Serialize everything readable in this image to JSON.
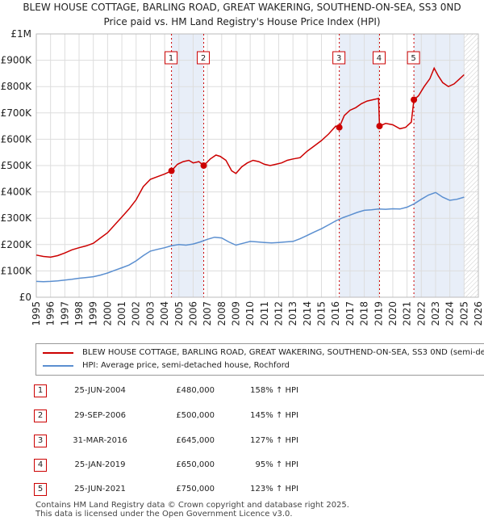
{
  "title_line1": "BLEW HOUSE COTTAGE, BARLING ROAD, GREAT WAKERING, SOUTHEND-ON-SEA, SS3 0ND",
  "title_line2": "Price paid vs. HM Land Registry's House Price Index (HPI)",
  "colors": {
    "red": "#cc0000",
    "blue": "#5b8fd0",
    "shade": "#e8eef8",
    "grid": "#dddddd"
  },
  "chart_data": {
    "type": "line",
    "xlim": [
      1995,
      2026
    ],
    "ylim": [
      0,
      1000000
    ],
    "y_ticks": [
      {
        "value": 0,
        "label": "£0"
      },
      {
        "value": 100000,
        "label": "£100K"
      },
      {
        "value": 200000,
        "label": "£200K"
      },
      {
        "value": 300000,
        "label": "£300K"
      },
      {
        "value": 400000,
        "label": "£400K"
      },
      {
        "value": 500000,
        "label": "£500K"
      },
      {
        "value": 600000,
        "label": "£600K"
      },
      {
        "value": 700000,
        "label": "£700K"
      },
      {
        "value": 800000,
        "label": "£800K"
      },
      {
        "value": 900000,
        "label": "£900K"
      },
      {
        "value": 1000000,
        "label": "£1M"
      }
    ],
    "x_ticks": [
      "1995",
      "1996",
      "1997",
      "1998",
      "1999",
      "2000",
      "2001",
      "2002",
      "2003",
      "2004",
      "2005",
      "2006",
      "2007",
      "2008",
      "2009",
      "2010",
      "2011",
      "2012",
      "2013",
      "2014",
      "2015",
      "2016",
      "2017",
      "2018",
      "2019",
      "2020",
      "2021",
      "2022",
      "2023",
      "2024",
      "2025",
      "2026"
    ],
    "shaded_ranges": [
      [
        2004.48,
        2006.74
      ],
      [
        2016.25,
        2019.07
      ],
      [
        2021.48,
        2025.0
      ]
    ],
    "series": [
      {
        "name": "BLEW HOUSE COTTAGE, BARLING ROAD, GREAT WAKERING, SOUTHEND-ON-SEA, SS3 0ND (semi-detached house)",
        "color": "red",
        "x": [
          1995.0,
          1995.5,
          1996.0,
          1996.5,
          1997.0,
          1997.5,
          1998.0,
          1998.5,
          1999.0,
          1999.5,
          2000.0,
          2000.5,
          2001.0,
          2001.5,
          2002.0,
          2002.5,
          2003.0,
          2003.5,
          2004.0,
          2004.48,
          2004.9,
          2005.3,
          2005.7,
          2006.0,
          2006.4,
          2006.74,
          2007.2,
          2007.6,
          2007.9,
          2008.3,
          2008.7,
          2009.0,
          2009.4,
          2009.8,
          2010.2,
          2010.6,
          2011.0,
          2011.4,
          2011.8,
          2012.2,
          2012.6,
          2013.0,
          2013.5,
          2014.0,
          2014.5,
          2015.0,
          2015.5,
          2016.0,
          2016.25,
          2016.6,
          2017.0,
          2017.4,
          2017.8,
          2018.2,
          2018.6,
          2019.0,
          2019.07,
          2019.5,
          2020.0,
          2020.5,
          2020.9,
          2021.3,
          2021.48,
          2021.8,
          2022.2,
          2022.6,
          2022.9,
          2023.2,
          2023.5,
          2023.9,
          2024.3,
          2024.7,
          2025.0
        ],
        "y": [
          160000,
          155000,
          152000,
          158000,
          168000,
          180000,
          188000,
          195000,
          205000,
          225000,
          245000,
          275000,
          305000,
          335000,
          370000,
          420000,
          448000,
          458000,
          468000,
          480000,
          505000,
          515000,
          520000,
          510000,
          515000,
          500000,
          525000,
          540000,
          535000,
          520000,
          480000,
          470000,
          495000,
          510000,
          520000,
          515000,
          505000,
          500000,
          505000,
          510000,
          520000,
          525000,
          530000,
          555000,
          575000,
          595000,
          620000,
          650000,
          645000,
          690000,
          710000,
          720000,
          735000,
          745000,
          750000,
          755000,
          650000,
          660000,
          655000,
          640000,
          645000,
          665000,
          750000,
          765000,
          800000,
          830000,
          870000,
          840000,
          815000,
          800000,
          810000,
          830000,
          845000
        ]
      },
      {
        "name": "HPI: Average price, semi-detached house, Rochford",
        "color": "blue",
        "x": [
          1995.0,
          1995.5,
          1996.0,
          1996.5,
          1997.0,
          1997.5,
          1998.0,
          1998.5,
          1999.0,
          1999.5,
          2000.0,
          2000.5,
          2001.0,
          2001.5,
          2002.0,
          2002.5,
          2003.0,
          2003.5,
          2004.0,
          2004.5,
          2005.0,
          2005.5,
          2006.0,
          2006.5,
          2007.0,
          2007.5,
          2008.0,
          2008.5,
          2009.0,
          2009.5,
          2010.0,
          2010.5,
          2011.0,
          2011.5,
          2012.0,
          2012.5,
          2013.0,
          2013.5,
          2014.0,
          2014.5,
          2015.0,
          2015.5,
          2016.0,
          2016.5,
          2017.0,
          2017.5,
          2018.0,
          2018.5,
          2019.0,
          2019.5,
          2020.0,
          2020.5,
          2021.0,
          2021.5,
          2022.0,
          2022.5,
          2023.0,
          2023.5,
          2024.0,
          2024.5,
          2025.0
        ],
        "y": [
          60000,
          59000,
          60000,
          62000,
          65000,
          68000,
          72000,
          75000,
          78000,
          84000,
          92000,
          102000,
          112000,
          122000,
          138000,
          158000,
          175000,
          182000,
          188000,
          196000,
          200000,
          198000,
          202000,
          210000,
          220000,
          228000,
          225000,
          210000,
          198000,
          205000,
          212000,
          210000,
          208000,
          206000,
          208000,
          210000,
          212000,
          222000,
          235000,
          248000,
          260000,
          275000,
          290000,
          302000,
          312000,
          322000,
          330000,
          332000,
          335000,
          334000,
          336000,
          335000,
          342000,
          355000,
          372000,
          388000,
          398000,
          380000,
          368000,
          372000,
          380000
        ]
      }
    ],
    "sales": [
      {
        "label": "1",
        "date": "25-JUN-2004",
        "x": 2004.48,
        "price": 480000,
        "price_label": "£480,000",
        "hpi_label": "158% ↑ HPI"
      },
      {
        "label": "2",
        "date": "29-SEP-2006",
        "x": 2006.74,
        "price": 500000,
        "price_label": "£500,000",
        "hpi_label": "145% ↑ HPI"
      },
      {
        "label": "3",
        "date": "31-MAR-2016",
        "x": 2016.25,
        "price": 645000,
        "price_label": "£645,000",
        "hpi_label": "127% ↑ HPI"
      },
      {
        "label": "4",
        "date": "25-JAN-2019",
        "x": 2019.07,
        "price": 650000,
        "price_label": "£650,000",
        "hpi_label": "95% ↑ HPI"
      },
      {
        "label": "5",
        "date": "25-JUN-2021",
        "x": 2021.48,
        "price": 750000,
        "price_label": "£750,000",
        "hpi_label": "123% ↑ HPI"
      }
    ]
  },
  "legend": {
    "red_label": "BLEW HOUSE COTTAGE, BARLING ROAD, GREAT WAKERING, SOUTHEND-ON-SEA, SS3 0ND (semi-detached house)",
    "blue_label": "HPI: Average price, semi-detached house, Rochford"
  },
  "footer": {
    "line1": "Contains HM Land Registry data © Crown copyright and database right 2025.",
    "line2": "This data is licensed under the Open Government Licence v3.0."
  }
}
